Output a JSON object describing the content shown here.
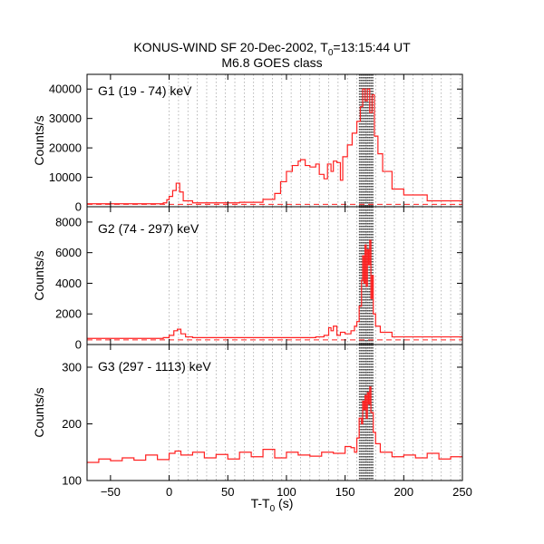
{
  "header": {
    "title_prefix": "KONUS-WIND SF 20-Dec-2002, T",
    "title_sub": "0",
    "title_suffix": "=13:15:44 UT",
    "subtitle": "M6.8 GOES class"
  },
  "chart_data": [
    {
      "type": "line",
      "label": "G1 (19 - 74) keV",
      "xlabel": "",
      "ylabel": "Counts/s",
      "xlim": [
        -70,
        250
      ],
      "ylim": [
        0,
        45000
      ],
      "yticks": [
        "0",
        "10000",
        "20000",
        "30000",
        "40000"
      ],
      "ytick_values": [
        0,
        10000,
        20000,
        30000,
        40000
      ],
      "color": "#ff2020",
      "background_level": 800,
      "x": [
        -70,
        -5,
        -2,
        0,
        3,
        6,
        9,
        12,
        20,
        60,
        80,
        90,
        95,
        100,
        105,
        110,
        112,
        116,
        120,
        125,
        128,
        132,
        135,
        138,
        140,
        143,
        146,
        148,
        152,
        156,
        160,
        163,
        165,
        167,
        169,
        171,
        173,
        175,
        178,
        182,
        190,
        200,
        220,
        250
      ],
      "y": [
        1000,
        1300,
        2400,
        3500,
        5500,
        8000,
        5000,
        2000,
        1300,
        1500,
        2500,
        4500,
        8500,
        12000,
        14000,
        15500,
        16000,
        14000,
        13500,
        14500,
        11000,
        9500,
        14500,
        12000,
        15500,
        15000,
        9000,
        17000,
        21000,
        25000,
        29000,
        34000,
        40000,
        36000,
        40000,
        32000,
        38000,
        24000,
        18000,
        12000,
        6000,
        4000,
        2000,
        1200
      ]
    },
    {
      "type": "line",
      "label": "G2 (74 - 297) keV",
      "xlabel": "",
      "ylabel": "Counts/s",
      "xlim": [
        -70,
        250
      ],
      "ylim": [
        0,
        9000
      ],
      "yticks": [
        "0",
        "2000",
        "4000",
        "6000",
        "8000"
      ],
      "ytick_values": [
        0,
        2000,
        4000,
        6000,
        8000
      ],
      "color": "#ff2020",
      "background_level": 300,
      "x": [
        -70,
        -5,
        0,
        4,
        7,
        10,
        14,
        20,
        60,
        100,
        125,
        132,
        136,
        138,
        140,
        143,
        146,
        150,
        155,
        158,
        160,
        162,
        164,
        165,
        166,
        167,
        168,
        169,
        170,
        171,
        172,
        173,
        174,
        176,
        180,
        190,
        250
      ],
      "y": [
        400,
        450,
        600,
        900,
        1000,
        700,
        500,
        450,
        450,
        450,
        500,
        600,
        1100,
        900,
        1200,
        600,
        800,
        700,
        900,
        1200,
        1500,
        2500,
        4200,
        5800,
        4000,
        6500,
        3800,
        6200,
        5200,
        6800,
        3000,
        4500,
        2000,
        1200,
        800,
        500,
        400
      ]
    },
    {
      "type": "line",
      "label": "G3 (297 - 1113) keV",
      "xlabel": "T-T0 (s)",
      "ylabel": "Counts/s",
      "xlim": [
        -70,
        250
      ],
      "ylim": [
        100,
        340
      ],
      "yticks": [
        "100",
        "200",
        "300"
      ],
      "ytick_values": [
        100,
        200,
        300
      ],
      "xticks": [
        "−50",
        "0",
        "50",
        "100",
        "150",
        "200",
        "250"
      ],
      "xtick_values": [
        -50,
        0,
        50,
        100,
        150,
        200,
        250
      ],
      "color": "#ff2020",
      "x": [
        -70,
        -60,
        -50,
        -40,
        -30,
        -20,
        -10,
        0,
        5,
        10,
        20,
        30,
        40,
        50,
        60,
        70,
        80,
        90,
        100,
        110,
        120,
        130,
        140,
        150,
        155,
        158,
        160,
        162,
        164,
        165,
        166,
        167,
        168,
        169,
        170,
        171,
        172,
        174,
        176,
        180,
        190,
        200,
        210,
        220,
        230,
        240,
        250
      ],
      "y": [
        132,
        138,
        135,
        140,
        136,
        145,
        137,
        148,
        152,
        145,
        150,
        140,
        146,
        138,
        150,
        142,
        155,
        140,
        150,
        145,
        143,
        150,
        148,
        160,
        158,
        150,
        175,
        210,
        200,
        240,
        225,
        250,
        210,
        255,
        235,
        265,
        220,
        185,
        165,
        150,
        142,
        145,
        140,
        148,
        138,
        142,
        140
      ]
    }
  ],
  "cadence": {
    "grid_spacing_s": 8,
    "grid_start_s": 0,
    "dense_from_s": 162,
    "dense_to_s": 174,
    "dense_spacing_s": 0.5
  }
}
